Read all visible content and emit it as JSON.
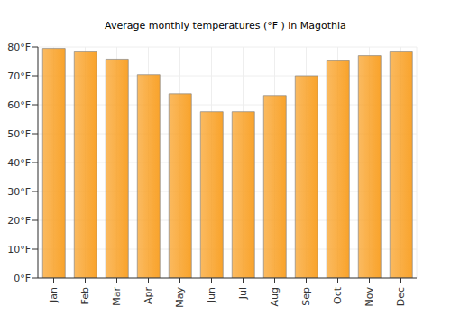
{
  "chart_data": {
    "type": "bar",
    "title": "Average monthly temperatures (°F ) in Magothla",
    "categories": [
      "Jan",
      "Feb",
      "Mar",
      "Apr",
      "May",
      "Jun",
      "Jul",
      "Aug",
      "Sep",
      "Oct",
      "Nov",
      "Dec"
    ],
    "values": [
      79.5,
      78.3,
      75.8,
      70.4,
      63.8,
      57.6,
      57.6,
      63.2,
      70.0,
      75.2,
      77.0,
      78.3
    ],
    "color": "#f9a32b",
    "ylim": [
      0,
      80
    ],
    "yticks": [
      {
        "value": 0,
        "label": "0°F"
      },
      {
        "value": 10,
        "label": "10°F"
      },
      {
        "value": 20,
        "label": "20°F"
      },
      {
        "value": 30,
        "label": "30°F"
      },
      {
        "value": 40,
        "label": "40°F"
      },
      {
        "value": 50,
        "label": "50°F"
      },
      {
        "value": 60,
        "label": "60°F"
      },
      {
        "value": 70,
        "label": "70°F"
      },
      {
        "value": 80,
        "label": "80°F"
      }
    ],
    "grid": true
  }
}
